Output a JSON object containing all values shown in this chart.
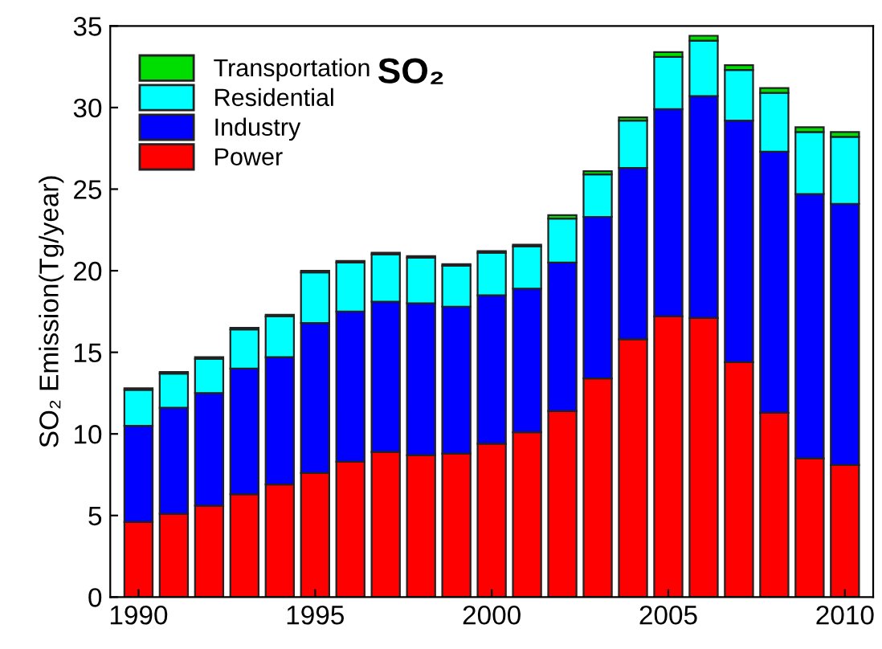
{
  "chart_data": {
    "type": "bar",
    "stacked": true,
    "title": "SO₂",
    "ylabel": "SO₂ Emission(Tg/year)",
    "x": [
      1990,
      1991,
      1992,
      1993,
      1994,
      1995,
      1996,
      1997,
      1998,
      1999,
      2000,
      2001,
      2002,
      2003,
      2004,
      2005,
      2006,
      2007,
      2008,
      2009,
      2010
    ],
    "series": [
      {
        "name": "Power",
        "color": "#ff0000",
        "values": [
          4.6,
          5.1,
          5.6,
          6.3,
          6.9,
          7.6,
          8.3,
          8.9,
          8.7,
          8.8,
          9.4,
          10.1,
          11.4,
          13.4,
          15.8,
          17.2,
          17.1,
          14.4,
          11.3,
          8.5,
          8.1
        ]
      },
      {
        "name": "Industry",
        "color": "#0000ff",
        "values": [
          5.9,
          6.5,
          6.9,
          7.7,
          7.8,
          9.2,
          9.2,
          9.2,
          9.3,
          9.0,
          9.1,
          8.8,
          9.1,
          9.9,
          10.5,
          12.7,
          13.6,
          14.8,
          16.0,
          16.2,
          16.0
        ]
      },
      {
        "name": "Residential",
        "color": "#00ffff",
        "values": [
          2.2,
          2.1,
          2.1,
          2.4,
          2.5,
          3.1,
          3.0,
          2.9,
          2.8,
          2.5,
          2.6,
          2.6,
          2.7,
          2.6,
          2.9,
          3.2,
          3.4,
          3.1,
          3.6,
          3.8,
          4.1
        ]
      },
      {
        "name": "Transportation",
        "color": "#00dd00",
        "values": [
          0.1,
          0.1,
          0.1,
          0.1,
          0.1,
          0.1,
          0.1,
          0.1,
          0.1,
          0.1,
          0.1,
          0.1,
          0.2,
          0.2,
          0.2,
          0.3,
          0.3,
          0.3,
          0.3,
          0.3,
          0.3
        ]
      }
    ],
    "xlim": [
      1989.2,
      2010.8
    ],
    "xticks": [
      1990,
      1995,
      2000,
      2005,
      2010
    ],
    "ylim": [
      0,
      35
    ],
    "yticks": [
      0,
      5,
      10,
      15,
      20,
      25,
      30,
      35
    ],
    "grid": false,
    "legend": "top left"
  }
}
